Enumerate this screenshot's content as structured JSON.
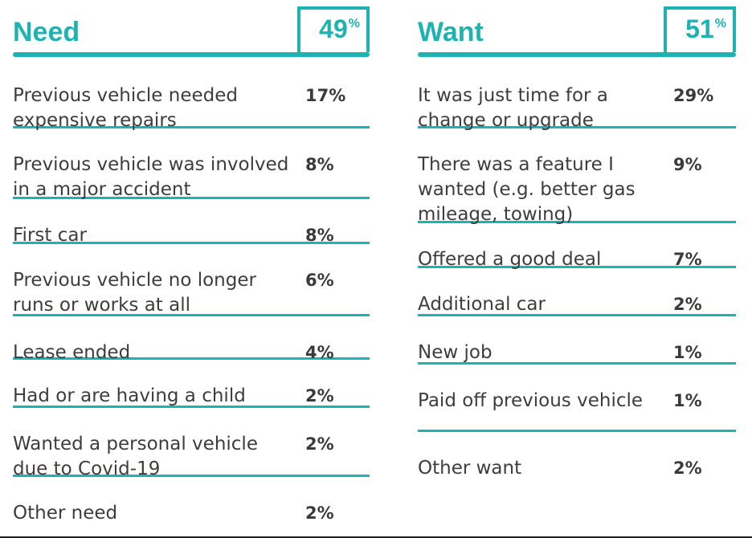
{
  "chart_data": {
    "type": "table",
    "columns": [
      {
        "title": "Need",
        "total": "49",
        "percent_sign": "%",
        "rows": [
          {
            "label": "Previous vehicle needed expensive repairs",
            "value": "17%"
          },
          {
            "label": "Previous vehicle was involved in a major accident",
            "value": "8%"
          },
          {
            "label": "First car",
            "value": "8%"
          },
          {
            "label": "Previous vehicle no longer runs or works at all",
            "value": "6%"
          },
          {
            "label": "Lease ended",
            "value": "4%"
          },
          {
            "label": "Had or are having a child",
            "value": "2%"
          },
          {
            "label": "Wanted a personal vehicle due to Covid-19",
            "value": "2%"
          },
          {
            "label": "Other need",
            "value": "2%"
          }
        ]
      },
      {
        "title": "Want",
        "total": "51",
        "percent_sign": "%",
        "rows": [
          {
            "label": "It was just time for a change or upgrade",
            "value": "29%"
          },
          {
            "label": "There was a feature I wanted (e.g. better gas mileage, towing)",
            "value": "9%"
          },
          {
            "label": "Offered a good deal",
            "value": "7%"
          },
          {
            "label": "Additional car",
            "value": "2%"
          },
          {
            "label": "New job",
            "value": "1%"
          },
          {
            "label": "Paid off previous vehicle",
            "value": "1%"
          },
          {
            "label": "Other want",
            "value": "2%"
          }
        ]
      }
    ]
  },
  "colors": {
    "accent": "#1eb3b1",
    "text": "#3d3d3d"
  }
}
